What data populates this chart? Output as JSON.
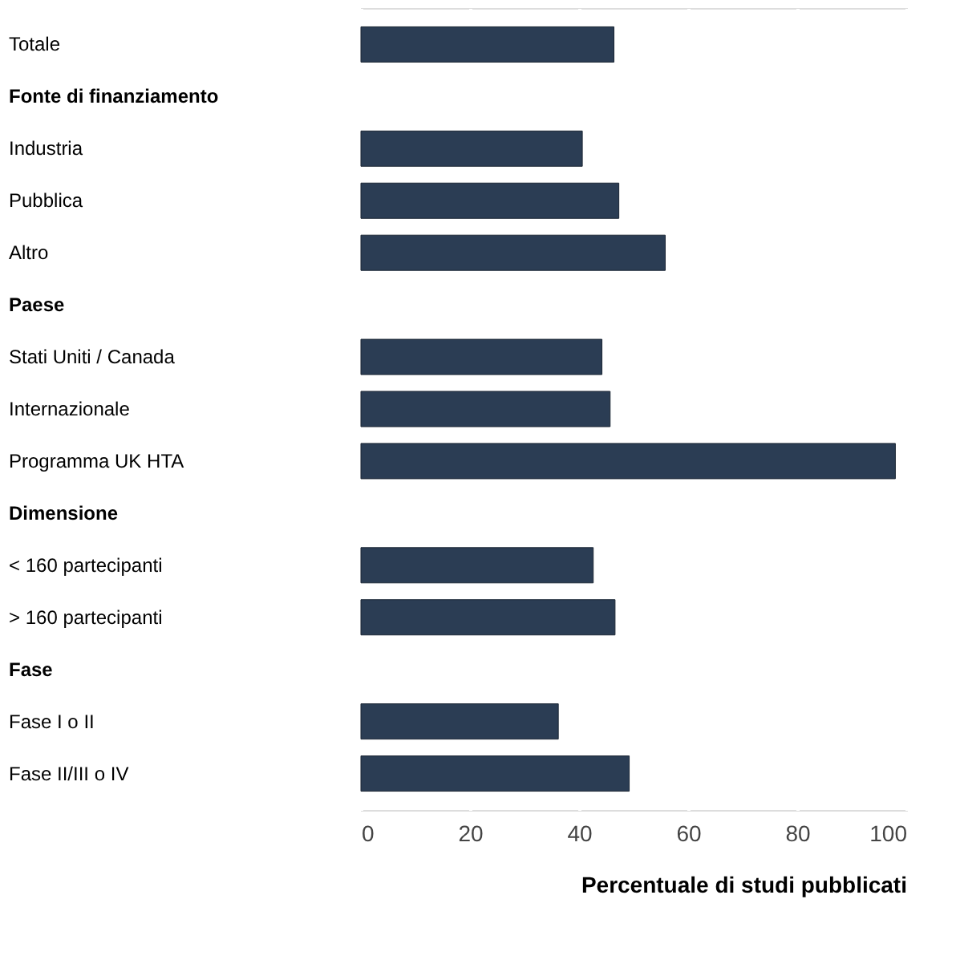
{
  "chart_data": {
    "type": "bar",
    "orientation": "horizontal",
    "xlabel": "Percentuale di studi pubblicati",
    "categories": [
      "Totale",
      "Fonte di finanziamento",
      "Industria",
      "Pubblica",
      "Altro",
      "Paese",
      "Stati Uniti / Canada",
      "Internazionale",
      "Programma UK HTA",
      "Dimensione",
      "< 160 partecipanti",
      "> 160 partecipanti",
      "Fase",
      "Fase I o II",
      "Fase II/III o IV"
    ],
    "values": [
      46.4,
      null,
      40.6,
      47.3,
      55.8,
      null,
      44.2,
      45.7,
      98,
      null,
      42.6,
      46.6,
      null,
      36.2,
      49.2
    ],
    "color": "#2b3d54",
    "xlim": [
      0,
      100
    ],
    "xticks": [
      0,
      20,
      40,
      60,
      80,
      100
    ],
    "grid": "x"
  }
}
